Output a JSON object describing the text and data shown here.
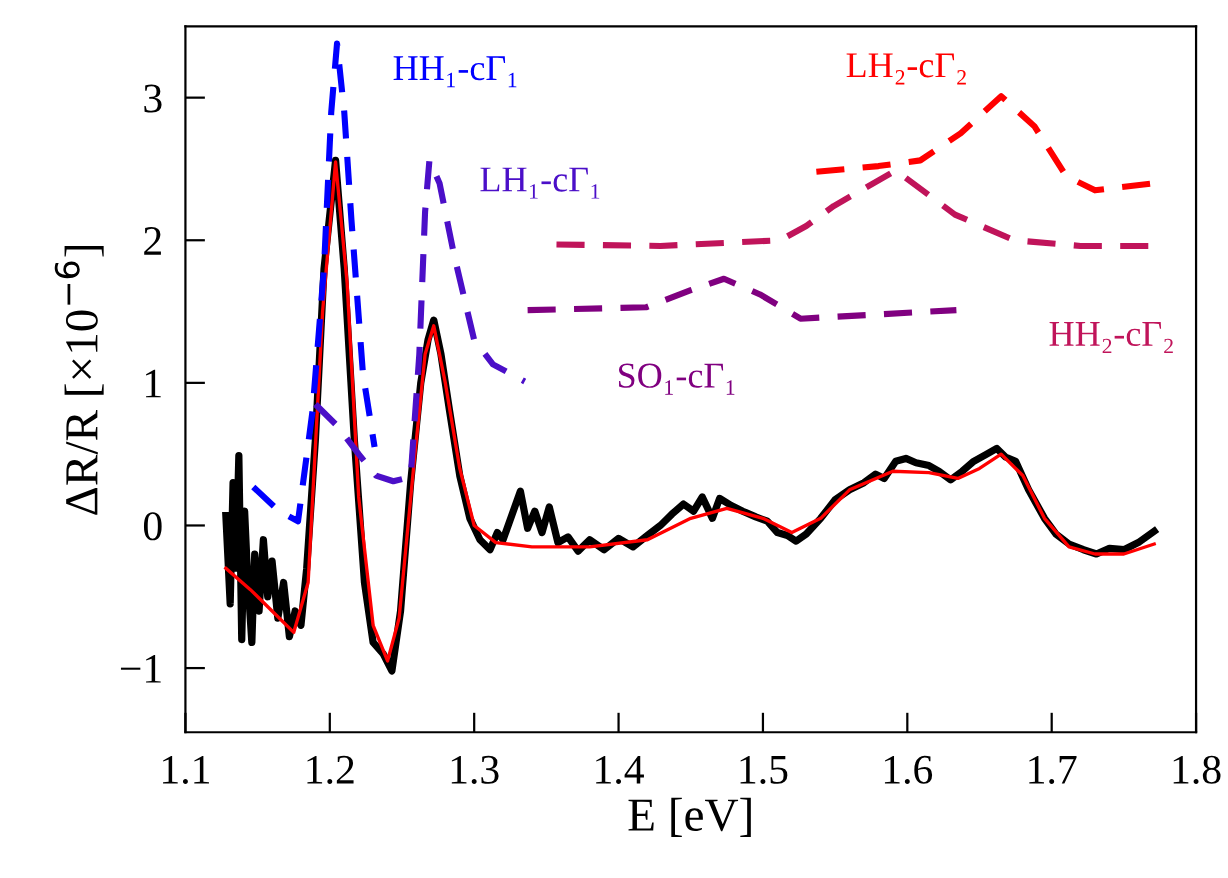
{
  "chart_data": {
    "type": "line",
    "xlabel": "E [eV]",
    "ylabel": "ΔR/R [×10$^{−6}$]",
    "xlim": [
      1.1,
      1.8
    ],
    "xticks": [
      1.1,
      1.2,
      1.3,
      1.4,
      1.5,
      1.6,
      1.7,
      1.8
    ],
    "ylim": [
      -1.45,
      3.5
    ],
    "yticks": [
      {
        "value": -1,
        "label": "−1"
      },
      0,
      1,
      2,
      3
    ],
    "grid": false,
    "legend": false,
    "marker": "none",
    "series": [
      {
        "color": "#000000",
        "line_style": "solid",
        "x": [
          1.128,
          1.131,
          1.133,
          1.135,
          1.137,
          1.139,
          1.141,
          1.143,
          1.146,
          1.148,
          1.151,
          1.154,
          1.157,
          1.16,
          1.164,
          1.168,
          1.172,
          1.176,
          1.18,
          1.184,
          1.19,
          1.196,
          1.204,
          1.21,
          1.217,
          1.224,
          1.23,
          1.237,
          1.243,
          1.249,
          1.256,
          1.263,
          1.268,
          1.272,
          1.277,
          1.283,
          1.29,
          1.297,
          1.304,
          1.311,
          1.316,
          1.32,
          1.326,
          1.332,
          1.337,
          1.342,
          1.347,
          1.352,
          1.358,
          1.365,
          1.372,
          1.38,
          1.39,
          1.4,
          1.41,
          1.42,
          1.429,
          1.437,
          1.445,
          1.452,
          1.458,
          1.465,
          1.47,
          1.478,
          1.486,
          1.495,
          1.503,
          1.51,
          1.517,
          1.523,
          1.53,
          1.54,
          1.55,
          1.56,
          1.57,
          1.578,
          1.584,
          1.592,
          1.599,
          1.606,
          1.615,
          1.622,
          1.63,
          1.638,
          1.646,
          1.655,
          1.662,
          1.668,
          1.675,
          1.684,
          1.695,
          1.703,
          1.712,
          1.722,
          1.731,
          1.74,
          1.75,
          1.76,
          1.771
        ],
        "values": [
          0.07,
          -0.55,
          0.3,
          -0.3,
          0.49,
          -0.8,
          0.1,
          -0.35,
          -0.82,
          -0.2,
          -0.6,
          -0.1,
          -0.5,
          -0.25,
          -0.65,
          -0.4,
          -0.78,
          -0.6,
          -0.7,
          -0.3,
          0.6,
          1.8,
          2.56,
          1.8,
          0.6,
          -0.4,
          -0.82,
          -0.9,
          -1.02,
          -0.6,
          0.3,
          1.0,
          1.3,
          1.44,
          1.2,
          0.8,
          0.35,
          0.05,
          -0.1,
          -0.17,
          -0.05,
          -0.1,
          0.07,
          0.24,
          -0.02,
          0.1,
          -0.05,
          0.13,
          -0.12,
          -0.08,
          -0.18,
          -0.1,
          -0.17,
          -0.09,
          -0.15,
          -0.07,
          0.0,
          0.08,
          0.15,
          0.1,
          0.2,
          0.05,
          0.19,
          0.14,
          0.1,
          0.06,
          0.03,
          -0.05,
          -0.07,
          -0.11,
          -0.06,
          0.05,
          0.18,
          0.25,
          0.3,
          0.36,
          0.33,
          0.45,
          0.47,
          0.44,
          0.42,
          0.38,
          0.32,
          0.38,
          0.45,
          0.5,
          0.54,
          0.48,
          0.45,
          0.25,
          0.05,
          -0.06,
          -0.13,
          -0.17,
          -0.2,
          -0.16,
          -0.17,
          -0.12,
          -0.04
        ]
      },
      {
        "color": "#ff0000",
        "line_style": "solid",
        "x": [
          1.128,
          1.145,
          1.16,
          1.175,
          1.185,
          1.195,
          1.204,
          1.212,
          1.22,
          1.23,
          1.24,
          1.248,
          1.258,
          1.266,
          1.272,
          1.28,
          1.29,
          1.3,
          1.315,
          1.34,
          1.38,
          1.42,
          1.45,
          1.475,
          1.5,
          1.52,
          1.54,
          1.56,
          1.59,
          1.615,
          1.635,
          1.65,
          1.665,
          1.68,
          1.695,
          1.712,
          1.73,
          1.75,
          1.771
        ],
        "values": [
          -0.3,
          -0.45,
          -0.6,
          -0.75,
          -0.4,
          1.5,
          2.55,
          1.7,
          0.2,
          -0.7,
          -0.95,
          -0.65,
          0.4,
          1.2,
          1.4,
          1.0,
          0.4,
          0.0,
          -0.12,
          -0.15,
          -0.15,
          -0.1,
          0.05,
          0.12,
          0.05,
          -0.05,
          0.05,
          0.25,
          0.38,
          0.37,
          0.33,
          0.4,
          0.5,
          0.35,
          0.05,
          -0.15,
          -0.2,
          -0.2,
          -0.13
        ]
      },
      {
        "name": "HH₁-cΓ₁",
        "color": "#0000ff",
        "line_style": "dashed",
        "x": [
          1.147,
          1.165,
          1.178,
          1.188,
          1.196,
          1.201,
          1.205,
          1.21,
          1.215,
          1.223,
          1.231
        ],
        "values": [
          0.27,
          0.1,
          0.03,
          0.8,
          1.81,
          2.9,
          3.38,
          2.9,
          2.14,
          1.06,
          0.55
        ]
      },
      {
        "name": "LH₁-cΓ₁",
        "color": "#4b0fc8",
        "line_style": "dashed",
        "x": [
          1.19,
          1.205,
          1.22,
          1.232,
          1.244,
          1.256,
          1.262,
          1.266,
          1.269,
          1.276,
          1.286,
          1.3,
          1.313,
          1.335
        ],
        "values": [
          0.85,
          0.7,
          0.5,
          0.35,
          0.31,
          0.34,
          1.2,
          2.2,
          2.56,
          2.4,
          1.9,
          1.3,
          1.13,
          1.01
        ]
      },
      {
        "name": "LH₂-cΓ₂",
        "color": "#ff0000",
        "line_style": "dashed",
        "x": [
          1.537,
          1.58,
          1.609,
          1.637,
          1.665,
          1.688,
          1.71,
          1.73,
          1.771
        ],
        "values": [
          2.48,
          2.52,
          2.56,
          2.75,
          3.01,
          2.8,
          2.45,
          2.35,
          2.4
        ]
      },
      {
        "name": "HH₂-cΓ₂",
        "color": "#c0145a",
        "line_style": "dashed",
        "x": [
          1.357,
          1.429,
          1.512,
          1.53,
          1.549,
          1.592,
          1.633,
          1.674,
          1.72,
          1.771
        ],
        "values": [
          1.97,
          1.96,
          2.0,
          2.1,
          2.24,
          2.49,
          2.18,
          2.0,
          1.96,
          1.96
        ]
      },
      {
        "name": "SO₁-cΓ₁",
        "color": "#800080",
        "line_style": "dashed",
        "x": [
          1.337,
          1.419,
          1.45,
          1.473,
          1.498,
          1.526,
          1.58,
          1.634
        ],
        "values": [
          1.51,
          1.53,
          1.65,
          1.73,
          1.62,
          1.45,
          1.48,
          1.51
        ]
      }
    ]
  }
}
